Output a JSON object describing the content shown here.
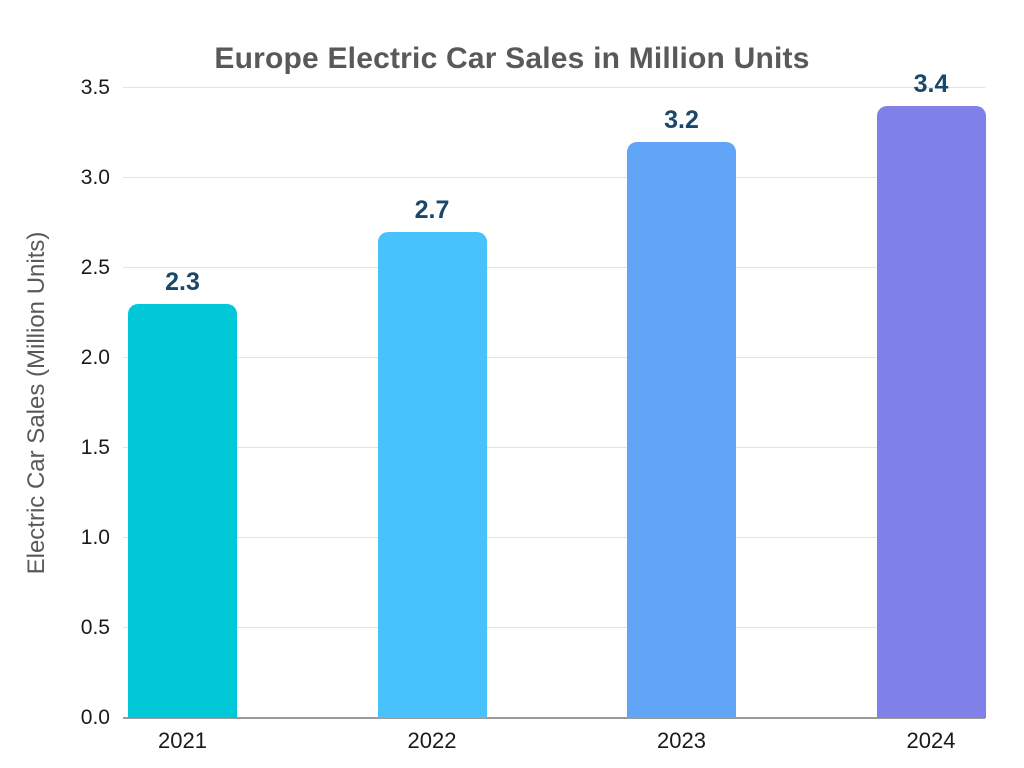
{
  "chart_data": {
    "type": "bar",
    "title": "Europe Electric Car Sales in Million Units",
    "categories": [
      "2021",
      "2022",
      "2023",
      "2024"
    ],
    "values": [
      2.3,
      2.7,
      3.2,
      3.4
    ],
    "data_labels": [
      "2.3",
      "2.7",
      "3.2",
      "3.4"
    ],
    "bar_colors": [
      "#00C8D8",
      "#47C2FB",
      "#60A5F6",
      "#8081E8"
    ],
    "xlabel": "",
    "ylabel": "Electric Car Sales (Million Units)",
    "ylim": [
      0,
      3.5
    ],
    "ytick_step": 0.5,
    "yticks": [
      "0.0",
      "0.5",
      "1.0",
      "1.5",
      "2.0",
      "2.5",
      "3.0",
      "3.5"
    ],
    "grid": "horizontal",
    "legend": "none",
    "colors": {
      "background": "#FFFFFF",
      "title": "#58595B",
      "axis_title": "#58595B",
      "tick_label": "#1A1A1A",
      "value_label": "#1B4768",
      "gridline": "#E3E3E3",
      "axis_line": "#9B9B9B"
    }
  }
}
